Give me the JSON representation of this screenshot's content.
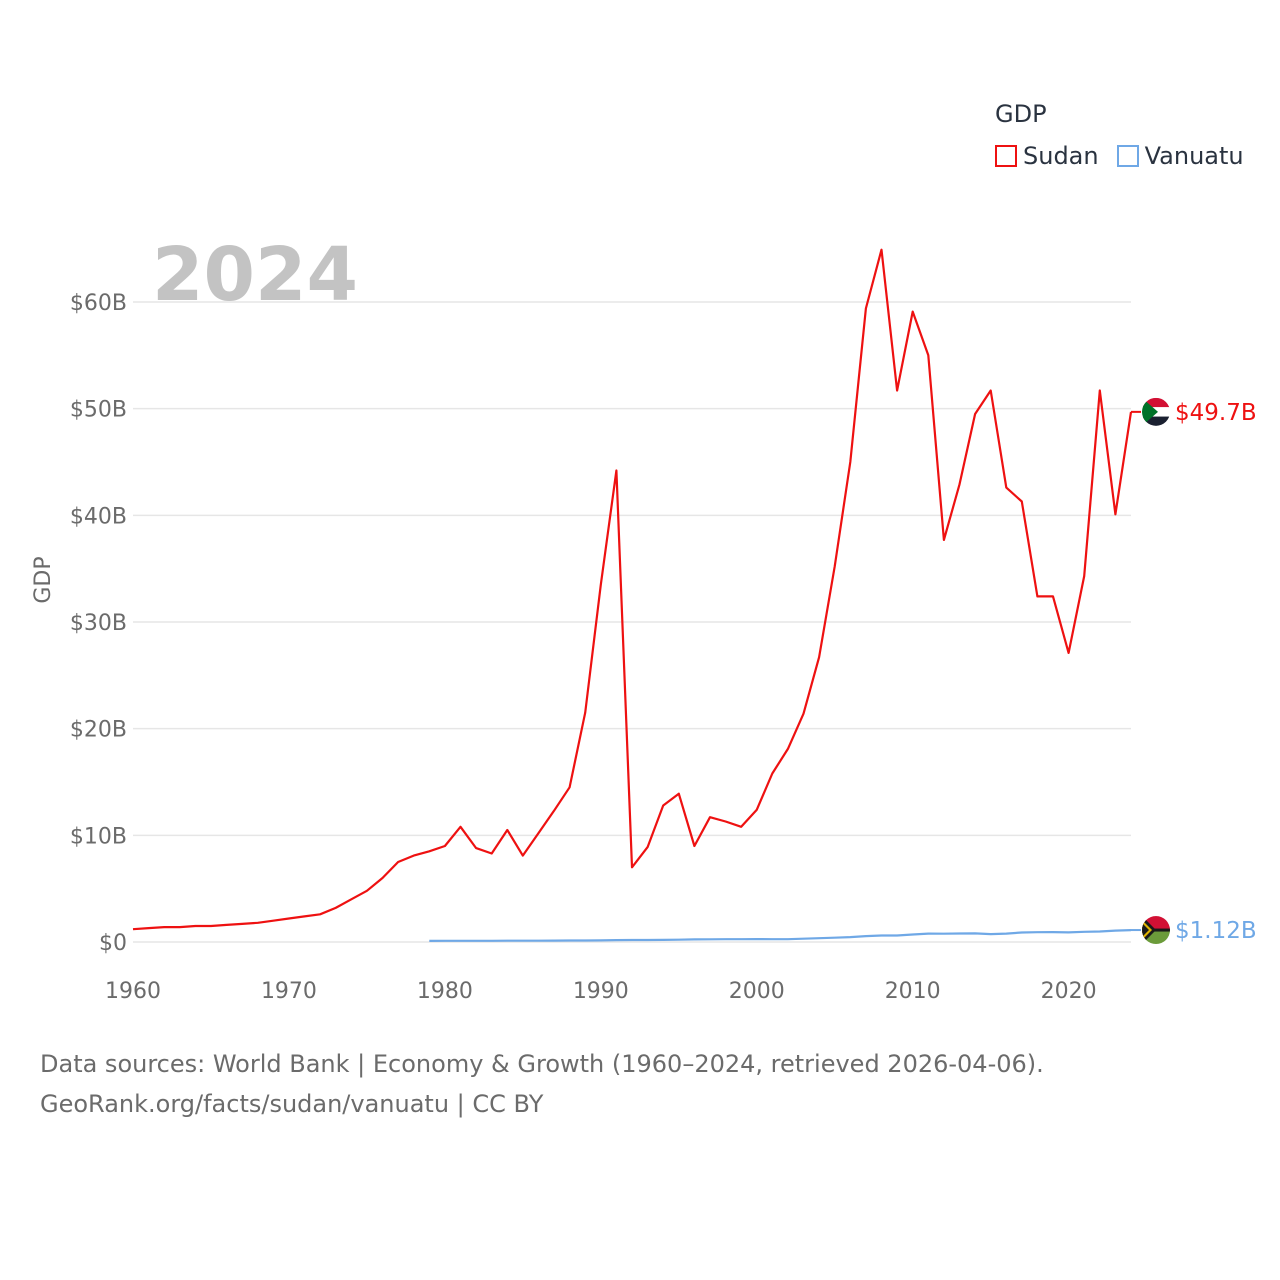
{
  "chart_data": {
    "type": "line",
    "title": "GDP",
    "year_label": "2024",
    "xlabel": "",
    "ylabel": "GDP",
    "xlim": [
      1960,
      2024
    ],
    "ylim": [
      0,
      60
    ],
    "x_ticks": [
      1960,
      1970,
      1980,
      1990,
      2000,
      2010,
      2020
    ],
    "y_ticks": [
      0,
      10,
      20,
      30,
      40,
      50,
      60
    ],
    "y_tick_labels": [
      "$0",
      "$10B",
      "$20B",
      "$30B",
      "$40B",
      "$50B",
      "$60B"
    ],
    "legend": {
      "title": "GDP",
      "position": "top-right"
    },
    "series": [
      {
        "name": "Sudan",
        "color": "#ee1111",
        "end_label": "$49.7B",
        "x": [
          1960,
          1961,
          1962,
          1963,
          1964,
          1965,
          1966,
          1967,
          1968,
          1969,
          1970,
          1971,
          1972,
          1973,
          1974,
          1975,
          1976,
          1977,
          1978,
          1979,
          1980,
          1981,
          1982,
          1983,
          1984,
          1985,
          1986,
          1987,
          1988,
          1989,
          1990,
          1991,
          1992,
          1993,
          1994,
          1995,
          1996,
          1997,
          1998,
          1999,
          2000,
          2001,
          2002,
          2003,
          2004,
          2005,
          2006,
          2007,
          2008,
          2009,
          2010,
          2011,
          2012,
          2013,
          2014,
          2015,
          2016,
          2017,
          2018,
          2019,
          2020,
          2021,
          2022,
          2023,
          2024
        ],
        "values": [
          1.2,
          1.3,
          1.4,
          1.4,
          1.5,
          1.5,
          1.6,
          1.7,
          1.8,
          2.0,
          2.2,
          2.4,
          2.6,
          3.2,
          4.0,
          4.8,
          6.0,
          7.5,
          8.1,
          8.5,
          9.0,
          10.8,
          8.8,
          8.3,
          10.5,
          8.1,
          10.2,
          12.3,
          14.5,
          21.5,
          33.5,
          44.2,
          7.0,
          8.9,
          12.8,
          13.9,
          9.0,
          11.7,
          11.3,
          10.8,
          12.4,
          15.8,
          18.1,
          21.4,
          26.7,
          35.2,
          45.0,
          59.4,
          64.9,
          51.7,
          59.1,
          55.0,
          37.7,
          42.9,
          49.5,
          51.7,
          42.6,
          41.3,
          32.4,
          32.4,
          27.1,
          34.3,
          51.7,
          40.1,
          49.7
        ]
      },
      {
        "name": "Vanuatu",
        "color": "#6fa8e6",
        "end_label": "$1.12B",
        "x": [
          1979,
          1980,
          1981,
          1982,
          1983,
          1984,
          1985,
          1986,
          1987,
          1988,
          1989,
          1990,
          1991,
          1992,
          1993,
          1994,
          1995,
          1996,
          1997,
          1998,
          1999,
          2000,
          2001,
          2002,
          2003,
          2004,
          2005,
          2006,
          2007,
          2008,
          2009,
          2010,
          2011,
          2012,
          2013,
          2014,
          2015,
          2016,
          2017,
          2018,
          2019,
          2020,
          2021,
          2022,
          2023,
          2024
        ],
        "values": [
          0.1,
          0.11,
          0.11,
          0.11,
          0.11,
          0.12,
          0.12,
          0.12,
          0.13,
          0.14,
          0.14,
          0.15,
          0.18,
          0.19,
          0.19,
          0.2,
          0.22,
          0.24,
          0.25,
          0.26,
          0.26,
          0.27,
          0.26,
          0.26,
          0.31,
          0.36,
          0.4,
          0.46,
          0.55,
          0.61,
          0.61,
          0.7,
          0.79,
          0.78,
          0.8,
          0.81,
          0.74,
          0.79,
          0.89,
          0.92,
          0.93,
          0.9,
          0.96,
          0.98,
          1.07,
          1.12
        ]
      }
    ]
  },
  "footer": {
    "line1": "Data sources: World Bank | Economy & Growth (1960–2024, retrieved 2026-04-06).",
    "line2": "GeoRank.org/facts/sudan/vanuatu | CC BY"
  }
}
